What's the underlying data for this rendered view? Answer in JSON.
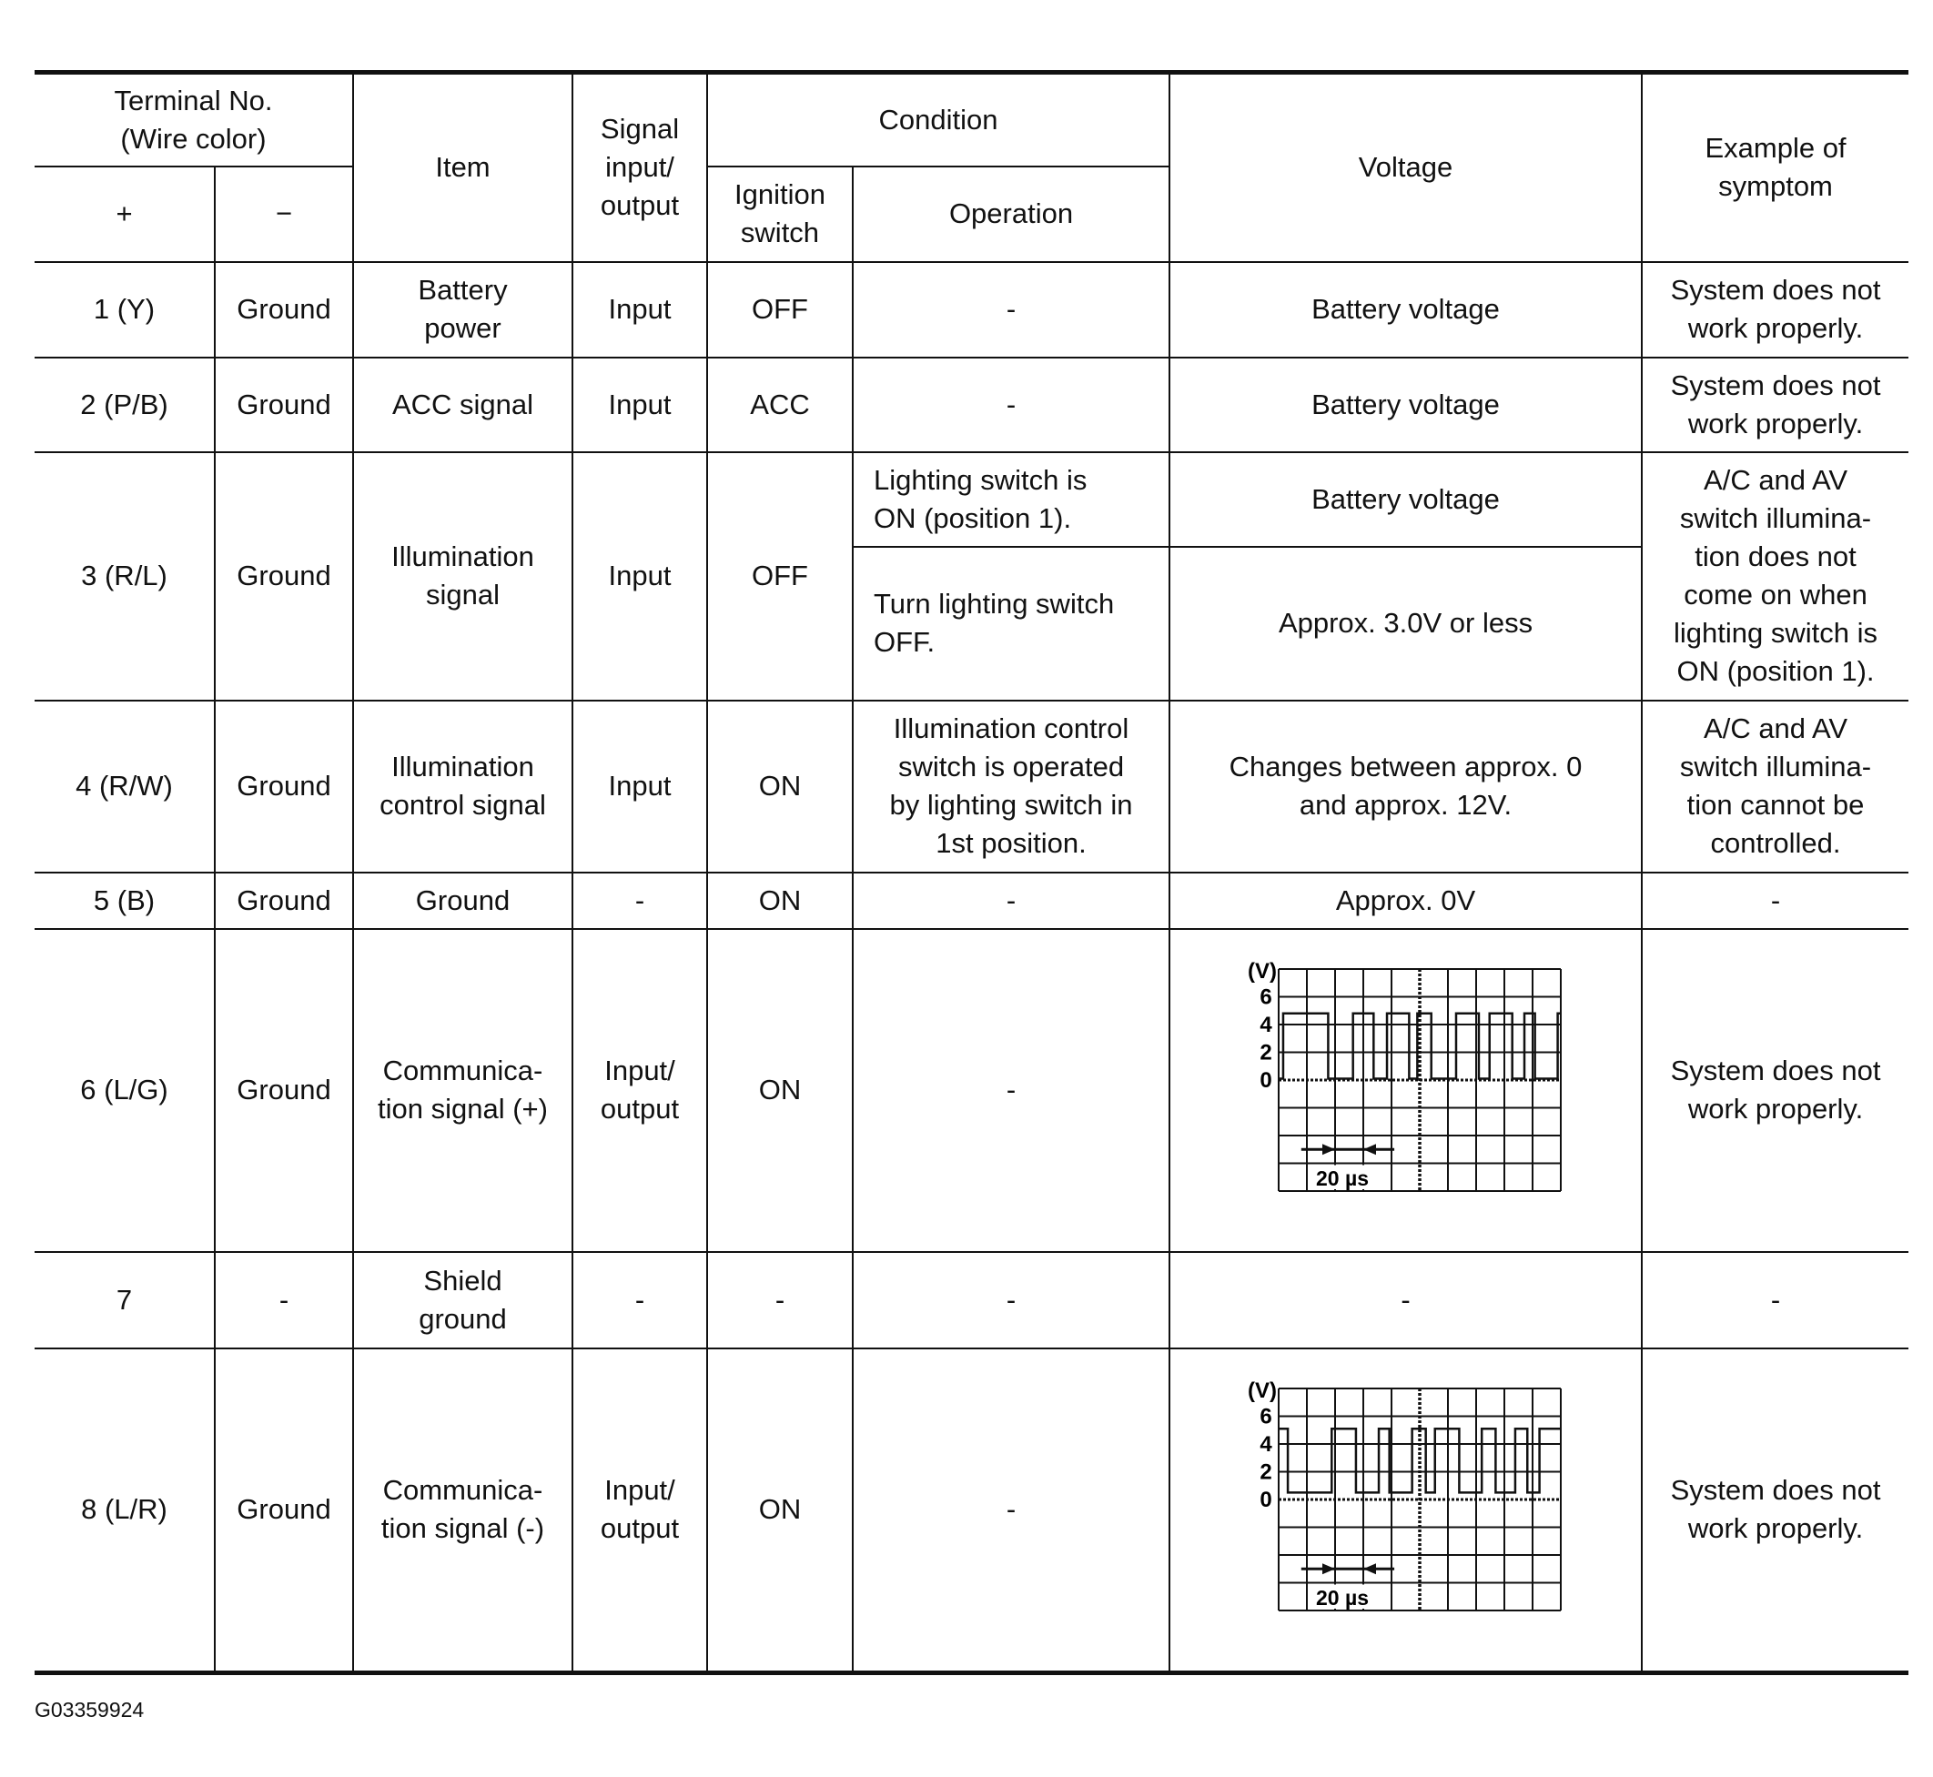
{
  "header": {
    "terminal": "Terminal No.\n(Wire color)",
    "plus": "+",
    "minus": "−",
    "item": "Item",
    "signal": "Signal\ninput/\noutput",
    "condition": "Condition",
    "ignition": "Ignition\nswitch",
    "operation": "Operation",
    "voltage": "Voltage",
    "symptom": "Example of\nsymptom"
  },
  "rows": [
    {
      "plus": "1 (Y)",
      "minus": "Ground",
      "item": "Battery\npower",
      "signal": "Input",
      "ignition": "OFF",
      "operation": "-",
      "voltage": "Battery voltage",
      "symptom": "System does not\nwork properly."
    },
    {
      "plus": "2 (P/B)",
      "minus": "Ground",
      "item": "ACC signal",
      "signal": "Input",
      "ignition": "ACC",
      "operation": "-",
      "voltage": "Battery voltage",
      "symptom": "System does not\nwork properly."
    },
    {
      "plus": "3 (R/L)",
      "minus": "Ground",
      "item": "Illumination\nsignal",
      "signal": "Input",
      "ignition": "OFF",
      "operation": "Lighting switch is\nON (position 1).",
      "voltage": "Battery voltage",
      "operation2": "Turn lighting switch\nOFF.",
      "voltage2": "Approx. 3.0V or less",
      "symptom": "A/C and AV\nswitch illumina-\ntion does not\ncome on when\nlighting switch is\nON (position 1)."
    },
    {
      "plus": "4 (R/W)",
      "minus": "Ground",
      "item": "Illumination\ncontrol signal",
      "signal": "Input",
      "ignition": "ON",
      "operation": "Illumination control\nswitch is operated\nby lighting switch in\n1st position.",
      "voltage": "Changes between approx. 0\nand approx. 12V.",
      "symptom": "A/C and AV\nswitch illumina-\ntion cannot be\ncontrolled."
    },
    {
      "plus": "5 (B)",
      "minus": "Ground",
      "item": "Ground",
      "signal": "-",
      "ignition": "ON",
      "operation": "-",
      "voltage": "Approx. 0V",
      "symptom": "-"
    },
    {
      "plus": "6 (L/G)",
      "minus": "Ground",
      "item": "Communica-\ntion signal (+)",
      "signal": "Input/\noutput",
      "ignition": "ON",
      "operation": "-",
      "symptom": "System does not\nwork properly."
    },
    {
      "plus": "7",
      "minus": "-",
      "item": "Shield\nground",
      "signal": "-",
      "ignition": "-",
      "operation": "-",
      "voltage": "-",
      "symptom": "-"
    },
    {
      "plus": "8 (L/R)",
      "minus": "Ground",
      "item": "Communica-\ntion signal (-)",
      "signal": "Input/\noutput",
      "ignition": "ON",
      "operation": "-",
      "symptom": "System does not\nwork properly."
    }
  ],
  "waveforms": [
    {
      "unit": "(V)",
      "y_ticks": [
        "6",
        "4",
        "2",
        "0"
      ],
      "time_label": "20 µs",
      "high": 4.8,
      "low": 0.1,
      "start_high": false,
      "edges_us": [
        3.2,
        35.1,
        52.7,
        67.3,
        76.8,
        92.5,
        98.3,
        108.2,
        125.8,
        141.9,
        149.5,
        165.6,
        174.2,
        181.7,
        197.8
      ]
    },
    {
      "unit": "(V)",
      "y_ticks": [
        "6",
        "4",
        "2",
        "0"
      ],
      "time_label": "20 µs",
      "high": 5.1,
      "low": 0.5,
      "start_high": true,
      "edges_us": [
        6.5,
        37.6,
        54.8,
        71,
        78.5,
        94.6,
        104.3,
        110.8,
        128,
        144,
        153.8,
        167.7,
        176.3,
        184.9
      ]
    }
  ],
  "figure_id": "G03359924"
}
